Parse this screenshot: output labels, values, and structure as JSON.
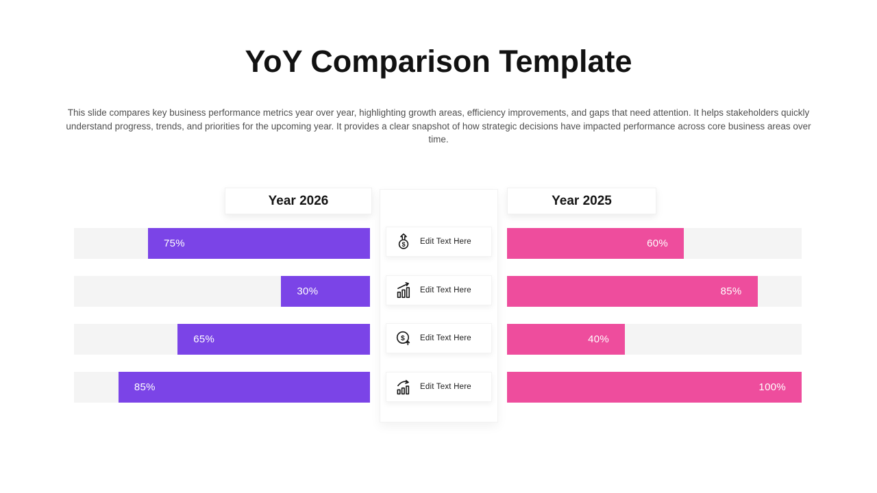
{
  "title": "YoY Comparison Template",
  "description": "This slide compares key business performance metrics year over year, highlighting growth areas, efficiency improvements, and gaps that need attention. It helps stakeholders quickly understand progress, trends, and priorities for the upcoming year. It provides a clear snapshot of how strategic decisions have impacted performance across core business areas over time.",
  "colors": {
    "left_bar": "#7b44e7",
    "right_bar": "#ee4d9d",
    "track": "#f4f4f4",
    "title_text": "#121212",
    "body_text": "#4e4e4e",
    "bar_label_text": "#ffffff"
  },
  "left_panel": {
    "header": "Year 2026",
    "bars": [
      {
        "value": 75,
        "label": "75%"
      },
      {
        "value": 30,
        "label": "30%"
      },
      {
        "value": 65,
        "label": "65%"
      },
      {
        "value": 85,
        "label": "85%"
      }
    ]
  },
  "right_panel": {
    "header": "Year 2025",
    "bars": [
      {
        "value": 60,
        "label": "60%"
      },
      {
        "value": 85,
        "label": "85%"
      },
      {
        "value": 40,
        "label": "40%"
      },
      {
        "value": 100,
        "label": "100%"
      }
    ]
  },
  "center_panel": {
    "items": [
      {
        "icon": "coin-up-arrow-icon",
        "label": "Edit Text Here"
      },
      {
        "icon": "bar-chart-growth-icon",
        "label": "Edit Text Here"
      },
      {
        "icon": "dollar-circle-up-icon",
        "label": "Edit Text Here"
      },
      {
        "icon": "bar-chart-trend-icon",
        "label": "Edit Text Here"
      }
    ]
  },
  "chart_data": {
    "type": "bar",
    "orientation": "horizontal",
    "title": "YoY Comparison Template",
    "categories": [
      "Edit Text Here",
      "Edit Text Here",
      "Edit Text Here",
      "Edit Text Here"
    ],
    "series": [
      {
        "name": "Year 2026",
        "values": [
          75,
          30,
          65,
          85
        ],
        "color": "#7b44e7",
        "bar_anchor": "right"
      },
      {
        "name": "Year 2025",
        "values": [
          60,
          85,
          40,
          100
        ],
        "color": "#ee4d9d",
        "bar_anchor": "left"
      }
    ],
    "value_range": [
      0,
      100
    ],
    "value_format": "percent",
    "grid": false,
    "legend_position": "headers-above-columns"
  }
}
